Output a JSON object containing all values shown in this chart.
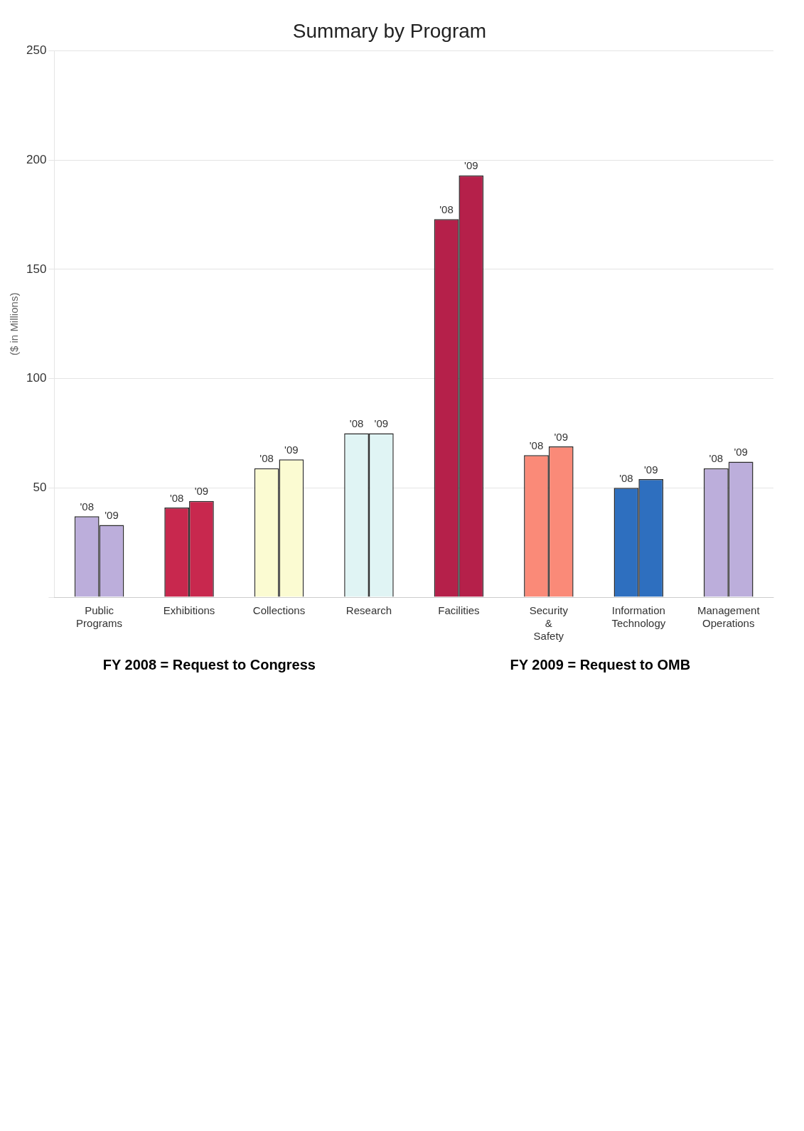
{
  "chart_data": {
    "type": "bar",
    "title": "Summary by Program",
    "ylabel": "($ in Millions)",
    "categories": [
      "Public Programs",
      "Exhibitions",
      "Collections",
      "Research",
      "Facilities",
      "Security & Safety",
      "Information Technology",
      "Management Operations"
    ],
    "series": [
      {
        "name": "'08",
        "colors": [
          "#bcaedb",
          "#c8284e",
          "#fbfbd2",
          "#e0f4f4",
          "#b5204a",
          "#fa8a78",
          "#2e6fbf",
          "#bcaedb"
        ],
        "values": [
          37,
          41,
          59,
          75,
          173,
          65,
          50,
          59
        ]
      },
      {
        "name": "'09",
        "colors": [
          "#bcaedb",
          "#c8284e",
          "#fbfbd2",
          "#e0f4f4",
          "#b5204a",
          "#fa8a78",
          "#2e6fbf",
          "#bcaedb"
        ],
        "values": [
          33,
          44,
          63,
          75,
          193,
          69,
          54,
          62
        ]
      }
    ],
    "ylim": [
      0,
      250
    ],
    "yticks": [
      {
        "value": 0,
        "label": null
      },
      50,
      100,
      150,
      200,
      250
    ],
    "grid": "y",
    "legend": false,
    "annotations": [
      "FY 2008 = Request to Congress",
      "FY 2009 = Request to OMB"
    ]
  }
}
